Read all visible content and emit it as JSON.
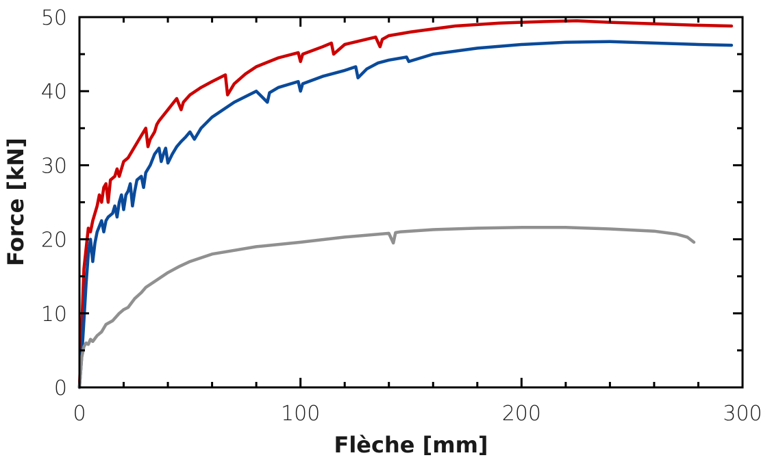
{
  "chart_data": {
    "type": "line",
    "title": "",
    "xlabel": "Flèche [mm]",
    "ylabel": "Force [kN]",
    "xlim": [
      0,
      300
    ],
    "ylim": [
      0,
      50
    ],
    "xticks": [
      0,
      100,
      200,
      300
    ],
    "yticks": [
      0,
      10,
      20,
      30,
      40,
      50
    ],
    "grid": false,
    "legend": "none",
    "series": [
      {
        "color": "#cc0000",
        "x": [
          0,
          2,
          4,
          5,
          6,
          7,
          8,
          9,
          10,
          11,
          12,
          13,
          14,
          16,
          17,
          18,
          20,
          22,
          24,
          26,
          28,
          30,
          31,
          32,
          34,
          35,
          36,
          40,
          44,
          46,
          47,
          50,
          55,
          60,
          66,
          67,
          70,
          75,
          80,
          90,
          99,
          100,
          101,
          110,
          114,
          115,
          120,
          134,
          136,
          137,
          140,
          150,
          170,
          190,
          210,
          225,
          240,
          260,
          280,
          295
        ],
        "y": [
          0,
          16,
          21.5,
          21,
          22.5,
          23.5,
          24.5,
          26,
          25,
          27,
          27.5,
          25,
          28,
          28.5,
          29.5,
          28.5,
          30.5,
          31,
          32,
          33,
          34,
          35,
          32.5,
          33.5,
          34.5,
          35.5,
          36,
          37.5,
          39,
          37.5,
          38.5,
          39.5,
          40.5,
          41.3,
          42.2,
          39.5,
          41,
          42.3,
          43.3,
          44.5,
          45.2,
          44,
          45,
          46,
          46.5,
          45,
          46.3,
          47.3,
          46,
          47,
          47.5,
          48,
          48.8,
          49.2,
          49.4,
          49.5,
          49.3,
          49.1,
          48.9,
          48.8
        ]
      },
      {
        "color": "#0a4a9a",
        "x": [
          0,
          1,
          2,
          3,
          4,
          5,
          6,
          7,
          8,
          10,
          11,
          12,
          13,
          15,
          16,
          17,
          18,
          19,
          20,
          21,
          22,
          23,
          24,
          25,
          26,
          28,
          29,
          30,
          32,
          34,
          36,
          37,
          38,
          39,
          40,
          42,
          44,
          46,
          48,
          50,
          52,
          55,
          60,
          70,
          80,
          85,
          86,
          90,
          99,
          100,
          101,
          110,
          120,
          125,
          126,
          130,
          135,
          140,
          148,
          149,
          160,
          180,
          200,
          220,
          240,
          260,
          280,
          295
        ],
        "y": [
          0,
          4,
          9,
          14,
          18,
          20,
          17,
          19.5,
          21,
          22.5,
          21,
          22.5,
          23,
          23.5,
          24.5,
          23,
          25,
          26,
          24,
          26,
          26.5,
          27.5,
          24.5,
          26.5,
          28,
          28.5,
          27,
          29,
          30,
          31.5,
          32.3,
          30.5,
          31.5,
          32.3,
          30.3,
          31.5,
          32.5,
          33.2,
          33.8,
          34.5,
          33.5,
          35,
          36.5,
          38.5,
          40,
          38.5,
          39.8,
          40.5,
          41.3,
          40,
          41,
          42,
          42.8,
          43.3,
          41.8,
          43,
          43.8,
          44.2,
          44.6,
          44,
          45,
          45.8,
          46.3,
          46.6,
          46.7,
          46.5,
          46.3,
          46.2
        ]
      },
      {
        "color": "#909090",
        "x": [
          0,
          1,
          2,
          3,
          4,
          5,
          6,
          8,
          10,
          12,
          15,
          18,
          20,
          22,
          25,
          28,
          30,
          35,
          40,
          45,
          50,
          60,
          70,
          80,
          100,
          120,
          140,
          142,
          143,
          145,
          160,
          180,
          200,
          220,
          240,
          260,
          270,
          275,
          278
        ],
        "y": [
          0,
          4,
          5.5,
          6,
          5.8,
          6.5,
          6.2,
          7,
          7.5,
          8.5,
          9,
          10,
          10.5,
          10.8,
          12,
          12.8,
          13.5,
          14.5,
          15.5,
          16.3,
          17,
          18,
          18.5,
          19,
          19.6,
          20.3,
          20.8,
          19.5,
          20.9,
          21,
          21.3,
          21.5,
          21.6,
          21.6,
          21.4,
          21.1,
          20.7,
          20.3,
          19.6
        ]
      }
    ]
  }
}
